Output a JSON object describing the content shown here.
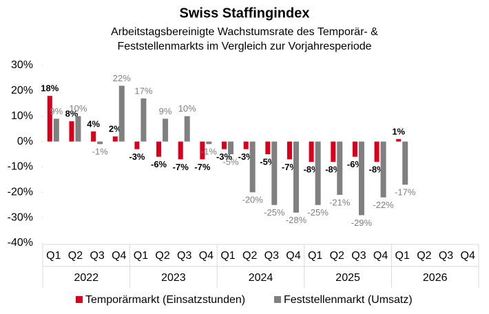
{
  "chart_data": {
    "type": "bar",
    "title": "Swiss Staffingindex",
    "subtitle": [
      "Arbeitstagsbereinigte Wachstumsrate des Temporär- &",
      "Feststellenmarkts im Vergleich zur Vorjahresperiode"
    ],
    "categories": [
      "Q1",
      "Q2",
      "Q3",
      "Q4",
      "Q1",
      "Q2",
      "Q3",
      "Q4",
      "Q1",
      "Q2",
      "Q3",
      "Q4",
      "Q1",
      "Q2",
      "Q3",
      "Q4",
      "Q1",
      "Q2",
      "Q3",
      "Q4"
    ],
    "groups": [
      "2022",
      "2023",
      "2024",
      "2025",
      "2026"
    ],
    "series": [
      {
        "name": "Temporärmarkt (Einsatzstunden)",
        "color": "#d9001b",
        "values": [
          18,
          8,
          4,
          2,
          -3,
          -6,
          -7,
          -7,
          -3,
          -3,
          -5,
          -7,
          -8,
          -8,
          -6,
          -8,
          1,
          null,
          null,
          null
        ],
        "value_labels": [
          "18%",
          "8%",
          "4%",
          "2%",
          "-3%",
          "-6%",
          "-7%",
          "-7%",
          "-3%",
          "-3%",
          "-5%",
          "-7%",
          "-8%",
          "-8%",
          "-6%",
          "-8%",
          "1%",
          null,
          null,
          null
        ]
      },
      {
        "name": "Feststellenmarkt (Umsatz)",
        "color": "#808080",
        "values": [
          9,
          10,
          -1,
          22,
          17,
          9,
          10,
          -1,
          -5,
          -20,
          -25,
          -28,
          -25,
          -21,
          -29,
          -22,
          -17,
          null,
          null,
          null
        ],
        "value_labels": [
          "9%",
          "10%",
          "-1%",
          "22%",
          "17%",
          "9%",
          "10%",
          "-1%",
          "-5%",
          "-20%",
          "-25%",
          "-28%",
          "-25%",
          "-21%",
          "-29%",
          "-22%",
          "-17%",
          null,
          null,
          null
        ]
      }
    ],
    "ylim": [
      -40,
      30
    ],
    "yticks": [
      {
        "value": -40,
        "label": "-40%"
      },
      {
        "value": -30,
        "label": "-30%"
      },
      {
        "value": -20,
        "label": "-20%"
      },
      {
        "value": -10,
        "label": "-10%"
      },
      {
        "value": 0,
        "label": "0%"
      },
      {
        "value": 10,
        "label": "10%"
      },
      {
        "value": 20,
        "label": "20%"
      },
      {
        "value": 30,
        "label": "30%"
      }
    ]
  }
}
